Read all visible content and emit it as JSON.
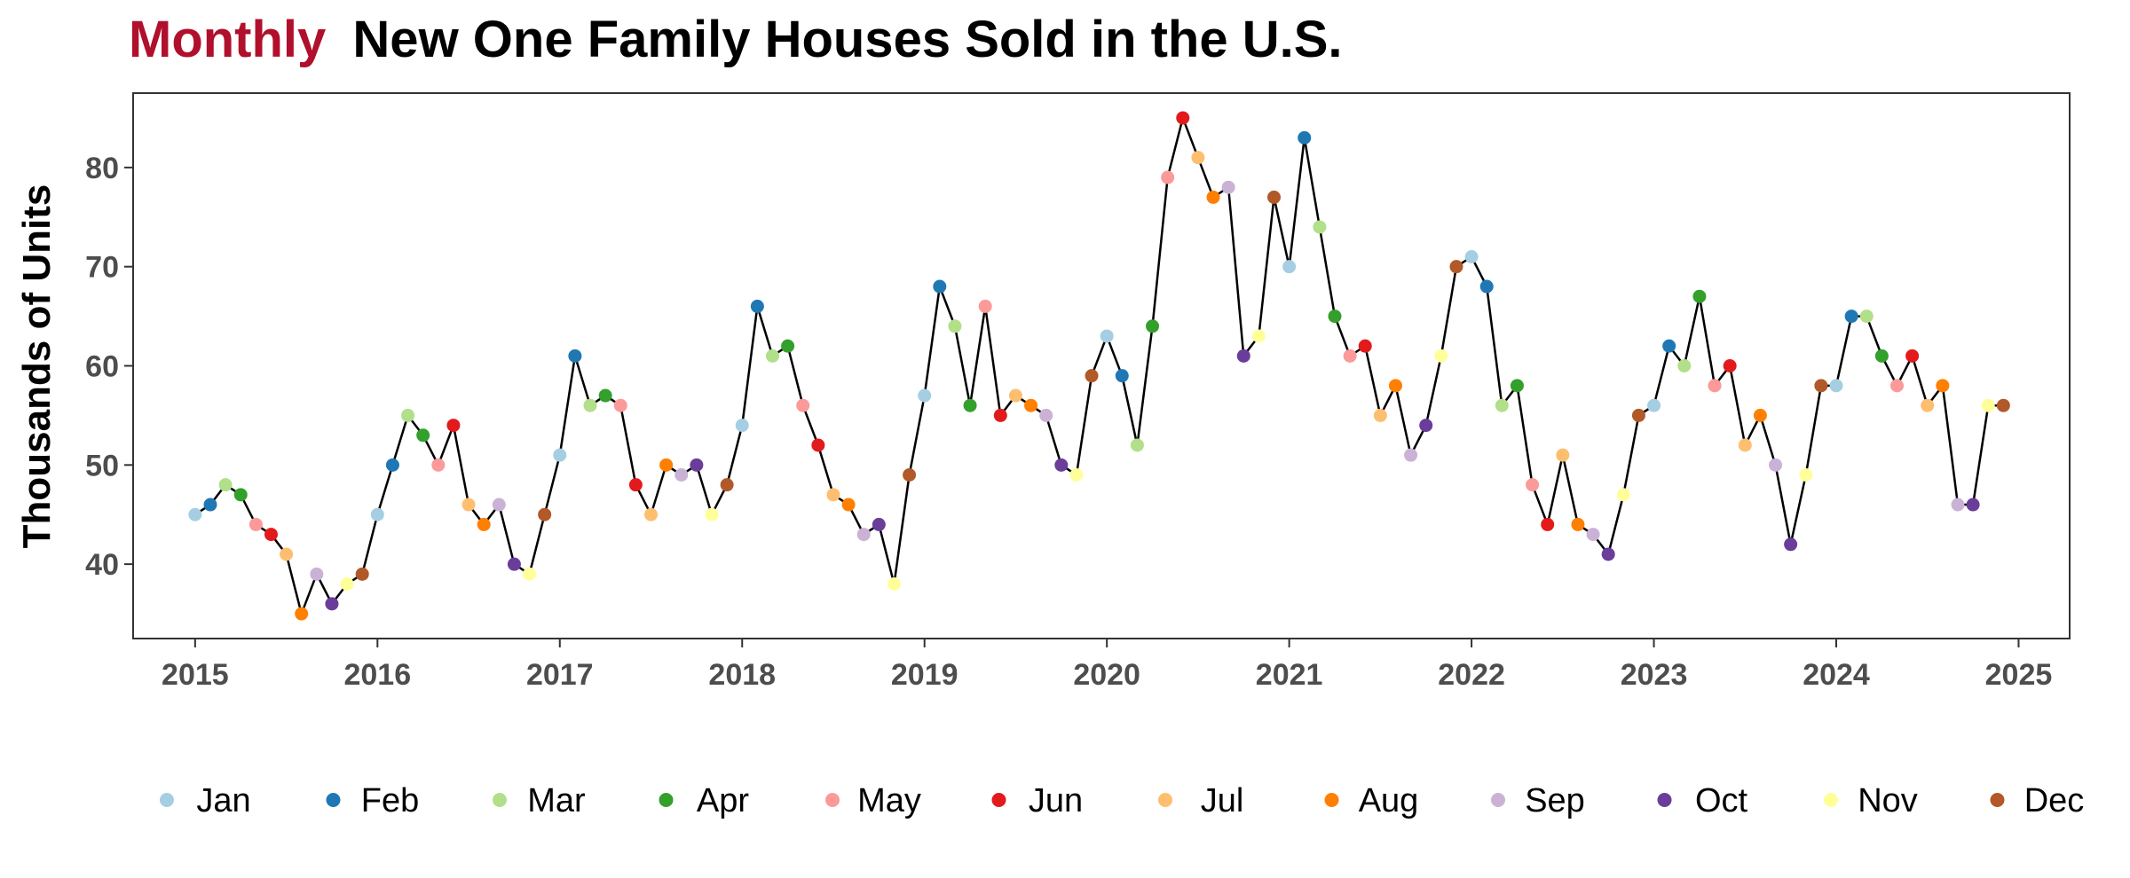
{
  "chart_data": {
    "type": "line",
    "title_highlight": "Monthly",
    "title_rest": "New One Family Houses Sold in the U.S.",
    "ylabel": "Thousands of Units",
    "xlabel": "",
    "x_ticks": [
      "2015",
      "2016",
      "2017",
      "2018",
      "2019",
      "2020",
      "2021",
      "2022",
      "2023",
      "2024",
      "2025"
    ],
    "y_ticks": [
      "40",
      "50",
      "60",
      "70",
      "80"
    ],
    "xlim": [
      2014.66,
      2025.28
    ],
    "ylim": [
      32.5,
      87.5
    ],
    "grid": false,
    "legend_position": "bottom",
    "months": [
      "Jan",
      "Feb",
      "Mar",
      "Apr",
      "May",
      "Jun",
      "Jul",
      "Aug",
      "Sep",
      "Oct",
      "Nov",
      "Dec"
    ],
    "month_colors": [
      "#A6CEE3",
      "#1F78B4",
      "#B2DF8A",
      "#33A02C",
      "#FB9A99",
      "#E31A1C",
      "#FDBF6F",
      "#FF7F00",
      "#CAB2D6",
      "#6A3D9A",
      "#FFFF99",
      "#B15928"
    ],
    "start_year": 2015,
    "start_month": 1,
    "values": [
      45,
      46,
      48,
      47,
      44,
      43,
      41,
      35,
      39,
      36,
      38,
      39,
      45,
      50,
      55,
      53,
      50,
      54,
      46,
      44,
      46,
      40,
      39,
      45,
      51,
      61,
      56,
      57,
      56,
      48,
      45,
      50,
      49,
      50,
      45,
      48,
      54,
      66,
      61,
      62,
      56,
      52,
      47,
      46,
      43,
      44,
      38,
      49,
      57,
      68,
      64,
      56,
      66,
      55,
      57,
      56,
      55,
      50,
      49,
      59,
      63,
      59,
      52,
      64,
      79,
      85,
      81,
      77,
      78,
      61,
      63,
      77,
      70,
      83,
      74,
      65,
      61,
      62,
      55,
      58,
      51,
      54,
      61,
      70,
      71,
      68,
      56,
      58,
      48,
      44,
      51,
      44,
      43,
      41,
      47,
      55,
      56,
      62,
      60,
      67,
      58,
      60,
      52,
      55,
      50,
      42,
      49,
      58,
      58,
      65,
      65,
      61,
      58,
      61,
      56,
      58,
      46,
      46,
      56,
      56
    ]
  }
}
